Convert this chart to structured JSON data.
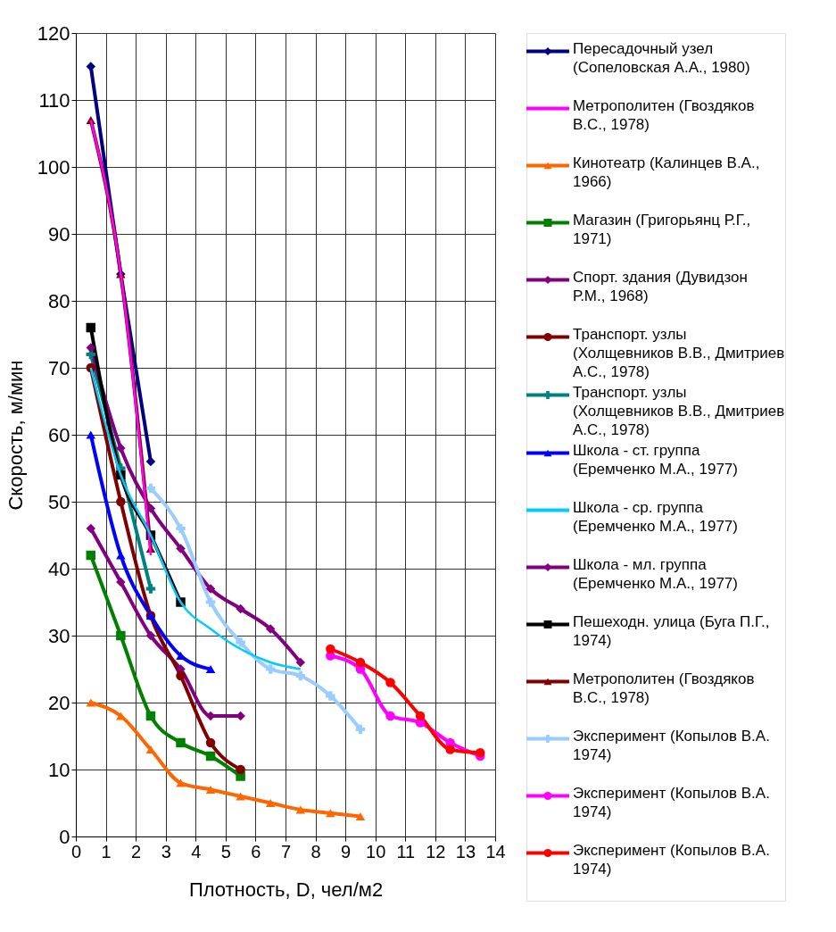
{
  "chart_data": {
    "type": "line",
    "xlabel": "Плотность, D, чел/м2",
    "ylabel": "Скорость, м/мин",
    "xlim": [
      0,
      14
    ],
    "xticks": [
      0,
      1,
      2,
      3,
      4,
      5,
      6,
      7,
      8,
      9,
      10,
      11,
      12,
      13,
      14
    ],
    "ylim": [
      0,
      120
    ],
    "yticks": [
      0,
      10,
      20,
      30,
      40,
      50,
      60,
      70,
      80,
      90,
      100,
      110,
      120
    ],
    "grid": true,
    "legend": "right",
    "line_style": "solid",
    "series": [
      {
        "name": "Пересадочный узел (Сопеловская А.А., 1980)",
        "color": "#000080",
        "marker": "diamond",
        "x": [
          0.5,
          1.5,
          2.5
        ],
        "values": [
          115,
          84,
          56
        ]
      },
      {
        "name": "Метрополитен (Гвоздяков В.С., 1978)",
        "color": "#ff00ff",
        "marker": "none",
        "x": [
          0.5,
          1.5,
          2.5
        ],
        "values": [
          107,
          84,
          42
        ]
      },
      {
        "name": "Кинотеатр (Калинцев В.А., 1966)",
        "color": "#ff6600",
        "marker": "triangle",
        "x": [
          0.5,
          1.5,
          2.5,
          3.5,
          4.5,
          5.5,
          6.5,
          7.5,
          8.5,
          9.5
        ],
        "values": [
          20,
          18,
          13,
          8,
          7,
          6,
          5,
          4,
          3.5,
          3
        ]
      },
      {
        "name": "Магазин (Григорьянц Р.Г., 1971)",
        "color": "#008000",
        "marker": "square",
        "x": [
          0.5,
          1.5,
          2.5,
          3.5,
          4.5,
          5.5
        ],
        "values": [
          42,
          30,
          18,
          14,
          12,
          9
        ]
      },
      {
        "name": "Спорт. здания (Дувидзон Р.М., 1968)",
        "color": "#800080",
        "marker": "diamond",
        "x": [
          0.5,
          1.5,
          2.5,
          3.5,
          4.5,
          5.5
        ],
        "values": [
          46,
          38,
          30,
          25,
          18,
          18
        ]
      },
      {
        "name": "Транспорт. узлы (Холщевников В.В., Дмитриев А.С., 1978)",
        "color": "#800000",
        "marker": "circle",
        "x": [
          0.5,
          1.5,
          2.5,
          3.5,
          4.5,
          5.5
        ],
        "values": [
          70,
          50,
          33,
          24,
          14,
          10
        ]
      },
      {
        "name": "Транспорт. узлы (Холщевников В.В., Дмитриев А.С., 1978)",
        "color": "#008080",
        "marker": "cross",
        "x": [
          0.5,
          1.5,
          2.5
        ],
        "values": [
          72,
          55,
          37
        ]
      },
      {
        "name": "Школа - ст. группа (Еремченко М.А., 1977)",
        "color": "#0000ff",
        "marker": "triangle",
        "x": [
          0.5,
          1.5,
          2.5,
          3.5,
          4.5
        ],
        "values": [
          60,
          42,
          33,
          27,
          25
        ]
      },
      {
        "name": "Школа - ср. группа (Еремченко М.А., 1977)",
        "color": "#00ccff",
        "marker": "none",
        "x": [
          0.5,
          1.5,
          2.5,
          3.5,
          4.5,
          5.5,
          6.5,
          7.5
        ],
        "values": [
          70,
          54,
          45,
          35,
          31,
          28,
          26,
          25
        ]
      },
      {
        "name": "Школа - мл. группа (Еремченко М.А., 1977)",
        "color": "#800080",
        "marker": "diamond",
        "x": [
          0.5,
          1.5,
          2.5,
          3.5,
          4.5,
          5.5,
          6.5,
          7.5
        ],
        "values": [
          73,
          58,
          49,
          43,
          37,
          34,
          31,
          26
        ]
      },
      {
        "name": "Пешеходн. улица (Буга П.Г., 1974)",
        "color": "#000000",
        "marker": "square",
        "x": [
          0.5,
          1.5,
          2.5,
          3.5
        ],
        "values": [
          76,
          54,
          45,
          35
        ]
      },
      {
        "name": "Метрополитен (Гвоздяков В.С., 1978)",
        "color": "#800000",
        "marker": "triangle",
        "x": [
          0.5,
          1.5,
          2.5
        ],
        "values": [
          107,
          84,
          43
        ]
      },
      {
        "name": "Эксперимент (Копылов В.А. 1974)",
        "color": "#99ccff",
        "marker": "cross",
        "x": [
          2.5,
          3.5,
          4.5,
          5.5,
          6.5,
          7.5,
          8.5,
          9.5
        ],
        "values": [
          52,
          46,
          35,
          29,
          25,
          24,
          21,
          16
        ]
      },
      {
        "name": "Эксперимент (Копылов В.А. 1974)",
        "color": "#ff00ff",
        "marker": "circle",
        "x": [
          8.5,
          9.5,
          10.5,
          11.5,
          12.5,
          13.5
        ],
        "values": [
          27,
          25,
          18,
          17,
          14,
          12
        ]
      },
      {
        "name": "Эксперимент (Копылов В.А. 1974)",
        "color": "#ff0000",
        "marker": "circle",
        "x": [
          8.5,
          9.5,
          10.5,
          11.5,
          12.5,
          13.5
        ],
        "values": [
          28,
          26,
          23,
          18,
          13,
          12.5
        ]
      }
    ]
  }
}
